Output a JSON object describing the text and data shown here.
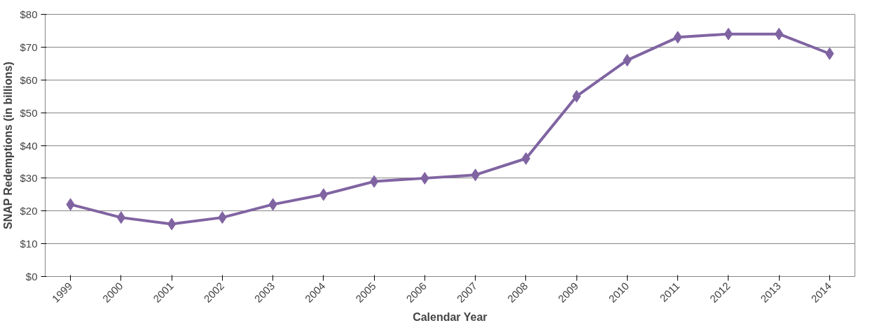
{
  "chart_data": {
    "type": "line",
    "xlabel": "Calendar Year",
    "ylabel": "SNAP Redemptions (in billions)",
    "categories": [
      "1999",
      "2000",
      "2001",
      "2002",
      "2003",
      "2004",
      "2005",
      "2006",
      "2007",
      "2008",
      "2009",
      "2010",
      "2011",
      "2012",
      "2013",
      "2014"
    ],
    "series": [
      {
        "color": "#8064a2",
        "values": [
          22,
          18,
          16,
          18,
          22,
          25,
          29,
          30,
          31,
          36,
          55,
          66,
          73,
          74,
          74,
          68
        ]
      }
    ],
    "ylim": [
      0,
      80
    ],
    "yticks": [
      {
        "value": 0,
        "label": "$0"
      },
      {
        "value": 10,
        "label": "$10"
      },
      {
        "value": 20,
        "label": "$20"
      },
      {
        "value": 30,
        "label": "$30"
      },
      {
        "value": 40,
        "label": "$40"
      },
      {
        "value": 50,
        "label": "$50"
      },
      {
        "value": 60,
        "label": "$60"
      },
      {
        "value": 70,
        "label": "$70"
      },
      {
        "value": 80,
        "label": "$80"
      }
    ],
    "grid": "y",
    "marker": "diamond",
    "line_style": "solid"
  }
}
